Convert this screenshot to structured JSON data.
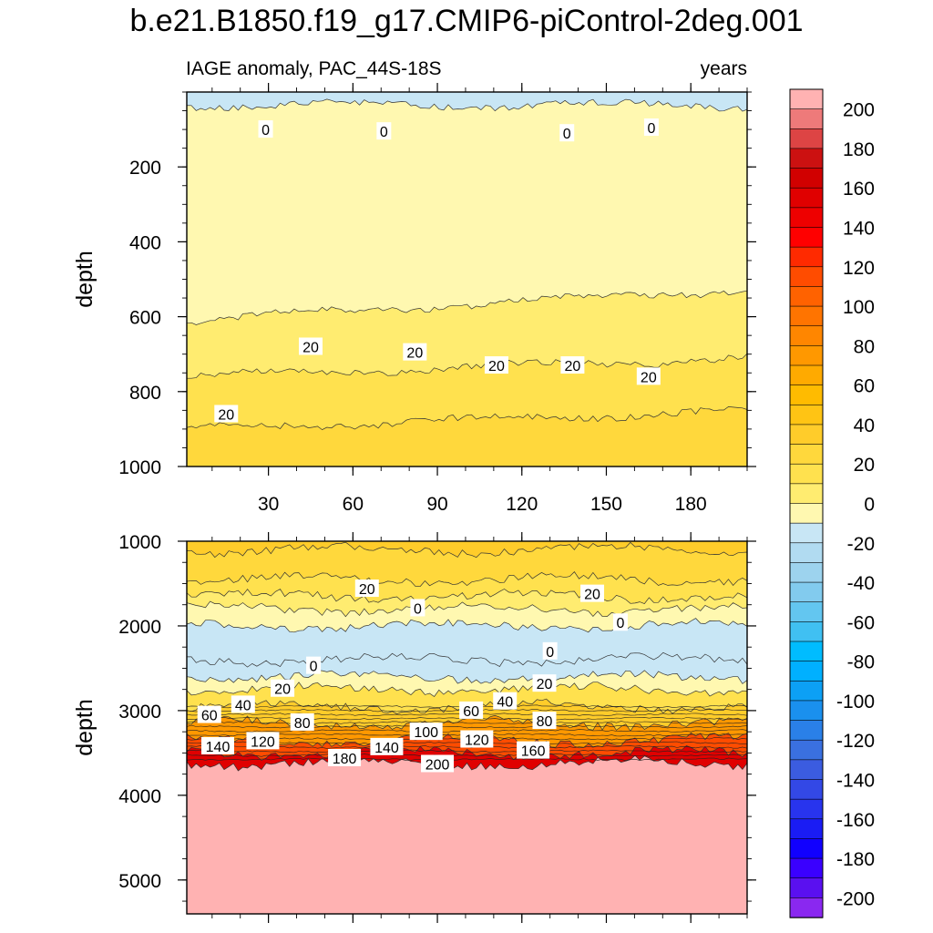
{
  "title": "b.e21.B1850.f19_g17.CMIP6-piControl-2deg.001",
  "chart_data": {
    "type": "heatmap",
    "title": "b.e21.B1850.f19_g17.CMIP6-piControl-2deg.001",
    "left_string": "IAGE anomaly, PAC_44S-18S",
    "right_string": "years",
    "xlabel": "",
    "ylabel": "depth",
    "x_range": [
      1,
      200
    ],
    "x_ticks": [
      30,
      60,
      90,
      120,
      150,
      180
    ],
    "colorbar": {
      "labels": [
        "200",
        "180",
        "160",
        "140",
        "120",
        "100",
        "80",
        "60",
        "40",
        "20",
        "0",
        "-20",
        "-40",
        "-60",
        "-80",
        "-100",
        "-120",
        "-140",
        "-160",
        "-180",
        "-200"
      ],
      "levels": [
        200,
        190,
        180,
        170,
        160,
        150,
        140,
        130,
        120,
        110,
        100,
        90,
        80,
        70,
        60,
        50,
        40,
        30,
        20,
        10,
        0,
        -10,
        -20,
        -30,
        -40,
        -50,
        -60,
        -70,
        -80,
        -90,
        -100,
        -110,
        -120,
        -130,
        -140,
        -150,
        -160,
        -170,
        -180,
        -190,
        -200
      ],
      "colors": [
        "#ffb2b2",
        "#ee7a7a",
        "#dd4444",
        "#cc1111",
        "#d10000",
        "#e00000",
        "#ee0000",
        "#ff0000",
        "#ff2a00",
        "#ff4c00",
        "#ff6200",
        "#ff7400",
        "#ff8600",
        "#ff9800",
        "#ffaa00",
        "#ffbb00",
        "#ffc414",
        "#ffcc2a",
        "#ffd83c",
        "#ffe14e",
        "#ffec70",
        "#fff8b0",
        "#c8e6f5",
        "#b1dbf1",
        "#9dd3ee",
        "#82cbee",
        "#63c6f0",
        "#40c0f2",
        "#00bcff",
        "#00b0ff",
        "#0ca0f5",
        "#1a90ee",
        "#2a80e8",
        "#3a70e0",
        "#3b5ce0",
        "#3348e6",
        "#2834ee",
        "#1a1cf4",
        "#1100ff",
        "#3a00ff",
        "#5a10f0",
        "#8a28f0"
      ]
    },
    "panels": [
      {
        "name": "upper",
        "ylim": [
          0,
          1000
        ],
        "y_ticks": [
          200,
          400,
          600,
          800,
          1000
        ],
        "ylabel": "depth",
        "contours": [
          {
            "level": 0,
            "mean_depth": 35
          },
          {
            "level": 10,
            "mean_depth": 610
          },
          {
            "level": 20,
            "mean_depth": 760
          },
          {
            "level": 30,
            "mean_depth": 900
          }
        ],
        "contour_labels": [
          {
            "text": "0",
            "x": 29,
            "y": 100
          },
          {
            "text": "0",
            "x": 71,
            "y": 105
          },
          {
            "text": "0",
            "x": 136,
            "y": 110
          },
          {
            "text": "0",
            "x": 166,
            "y": 95
          },
          {
            "text": "20",
            "x": 45,
            "y": 680
          },
          {
            "text": "20",
            "x": 82,
            "y": 695
          },
          {
            "text": "20",
            "x": 111,
            "y": 730
          },
          {
            "text": "20",
            "x": 138,
            "y": 730
          },
          {
            "text": "20",
            "x": 165,
            "y": 760
          },
          {
            "text": "20",
            "x": 15,
            "y": 860
          }
        ]
      },
      {
        "name": "lower",
        "ylim": [
          1000,
          5400
        ],
        "y_ticks": [
          1000,
          2000,
          3000,
          4000,
          5000
        ],
        "ylabel": "depth",
        "bands": [
          {
            "level": 30,
            "depth": 1100
          },
          {
            "level": 20,
            "depth": 1450
          },
          {
            "level": 10,
            "depth": 1650
          },
          {
            "level": 0,
            "depth": 1800
          },
          {
            "level": -10,
            "depth": 2000
          },
          {
            "level": -10,
            "depth": 2400
          },
          {
            "level": 0,
            "depth": 2600
          },
          {
            "level": 20,
            "depth": 2750
          },
          {
            "level": 40,
            "depth": 2950
          },
          {
            "level": 80,
            "depth": 3150
          },
          {
            "level": 120,
            "depth": 3350
          },
          {
            "level": 160,
            "depth": 3500
          },
          {
            "level": 200,
            "depth": 3620
          }
        ],
        "contour_labels": [
          {
            "text": "20",
            "x": 65,
            "y": 1560
          },
          {
            "text": "20",
            "x": 145,
            "y": 1620
          },
          {
            "text": "0",
            "x": 83,
            "y": 1790
          },
          {
            "text": "0",
            "x": 155,
            "y": 1960
          },
          {
            "text": "0",
            "x": 130,
            "y": 2300
          },
          {
            "text": "0",
            "x": 46,
            "y": 2470
          },
          {
            "text": "20",
            "x": 35,
            "y": 2740
          },
          {
            "text": "20",
            "x": 128,
            "y": 2680
          },
          {
            "text": "40",
            "x": 21,
            "y": 2930
          },
          {
            "text": "40",
            "x": 114,
            "y": 2890
          },
          {
            "text": "60",
            "x": 9,
            "y": 3050
          },
          {
            "text": "60",
            "x": 102,
            "y": 3000
          },
          {
            "text": "80",
            "x": 42,
            "y": 3140
          },
          {
            "text": "80",
            "x": 128,
            "y": 3120
          },
          {
            "text": "100",
            "x": 86,
            "y": 3250
          },
          {
            "text": "120",
            "x": 28,
            "y": 3360
          },
          {
            "text": "120",
            "x": 104,
            "y": 3340
          },
          {
            "text": "140",
            "x": 12,
            "y": 3420
          },
          {
            "text": "140",
            "x": 72,
            "y": 3430
          },
          {
            "text": "160",
            "x": 124,
            "y": 3470
          },
          {
            "text": "180",
            "x": 57,
            "y": 3560
          },
          {
            "text": "200",
            "x": 90,
            "y": 3630
          }
        ]
      }
    ]
  }
}
